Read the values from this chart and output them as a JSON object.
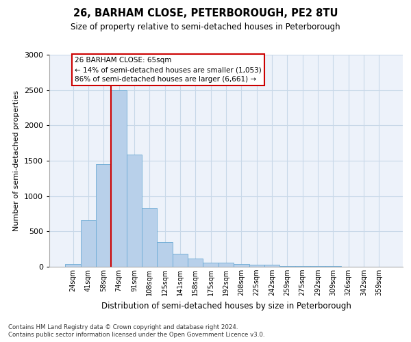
{
  "title": "26, BARHAM CLOSE, PETERBOROUGH, PE2 8TU",
  "subtitle": "Size of property relative to semi-detached houses in Peterborough",
  "xlabel": "Distribution of semi-detached houses by size in Peterborough",
  "ylabel": "Number of semi-detached properties",
  "categories": [
    "24sqm",
    "41sqm",
    "58sqm",
    "74sqm",
    "91sqm",
    "108sqm",
    "125sqm",
    "141sqm",
    "158sqm",
    "175sqm",
    "192sqm",
    "208sqm",
    "225sqm",
    "242sqm",
    "259sqm",
    "275sqm",
    "292sqm",
    "309sqm",
    "326sqm",
    "342sqm",
    "359sqm"
  ],
  "values": [
    40,
    660,
    1450,
    2500,
    1590,
    830,
    350,
    185,
    120,
    60,
    60,
    40,
    30,
    25,
    10,
    10,
    8,
    5,
    3,
    3,
    2
  ],
  "bar_color": "#b8d0ea",
  "bar_edge_color": "#6aaad4",
  "grid_color": "#c8d8e8",
  "bg_color": "#edf2fa",
  "annotation_text": "26 BARHAM CLOSE: 65sqm\n← 14% of semi-detached houses are smaller (1,053)\n86% of semi-detached houses are larger (6,661) →",
  "vline_x_index": 2.5,
  "box_color": "#cc0000",
  "ylim": [
    0,
    3000
  ],
  "footnote1": "Contains HM Land Registry data © Crown copyright and database right 2024.",
  "footnote2": "Contains public sector information licensed under the Open Government Licence v3.0."
}
